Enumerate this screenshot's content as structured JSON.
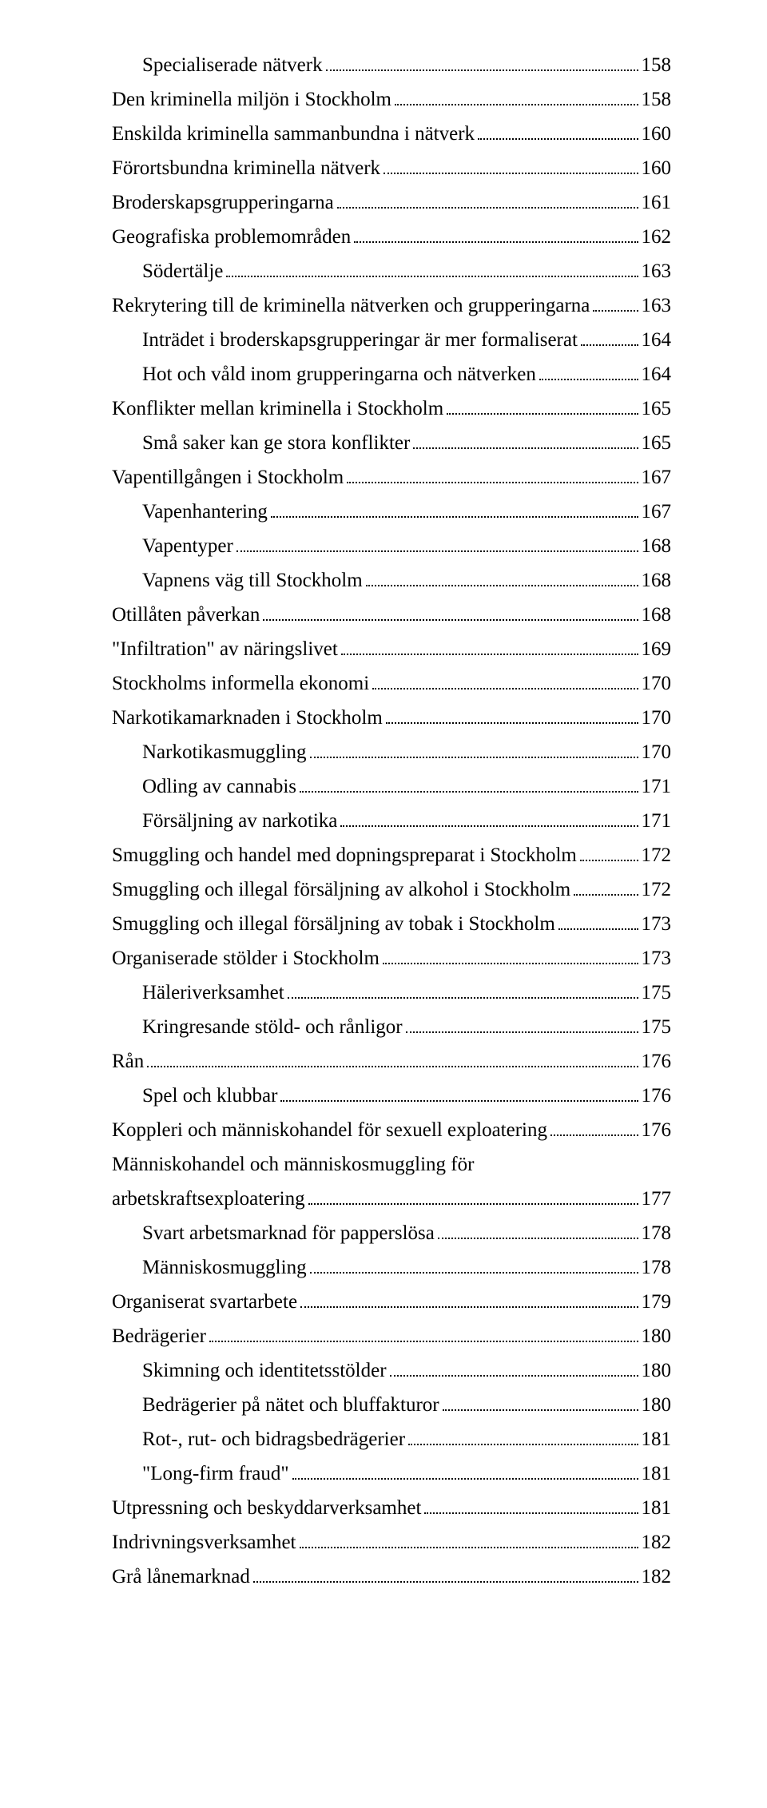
{
  "toc": [
    {
      "label": "Specialiserade nätverk",
      "page": "158",
      "indent": 1
    },
    {
      "label": "Den kriminella miljön i Stockholm",
      "page": "158",
      "indent": 0
    },
    {
      "label": "Enskilda kriminella sammanbundna i nätverk",
      "page": "160",
      "indent": 0
    },
    {
      "label": "Förortsbundna kriminella nätverk",
      "page": "160",
      "indent": 0
    },
    {
      "label": "Broderskapsgrupperingarna",
      "page": "161",
      "indent": 0
    },
    {
      "label": "Geografiska problemområden",
      "page": "162",
      "indent": 0
    },
    {
      "label": "Södertälje",
      "page": "163",
      "indent": 1
    },
    {
      "label": "Rekrytering till de kriminella nätverken och grupperingarna",
      "page": "163",
      "indent": 0
    },
    {
      "label": "Inträdet i broderskapsgrupperingar är mer formaliserat",
      "page": "164",
      "indent": 1
    },
    {
      "label": "Hot och våld inom grupperingarna och nätverken",
      "page": "164",
      "indent": 1
    },
    {
      "label": "Konflikter mellan kriminella i Stockholm",
      "page": "165",
      "indent": 0
    },
    {
      "label": "Små saker kan ge stora konflikter",
      "page": "165",
      "indent": 1
    },
    {
      "label": "Vapentillgången i Stockholm",
      "page": "167",
      "indent": 0
    },
    {
      "label": "Vapenhantering",
      "page": "167",
      "indent": 1
    },
    {
      "label": "Vapentyper",
      "page": "168",
      "indent": 1
    },
    {
      "label": "Vapnens väg till Stockholm",
      "page": "168",
      "indent": 1
    },
    {
      "label": "Otillåten påverkan",
      "page": "168",
      "indent": 0
    },
    {
      "label": "\"Infiltration\" av näringslivet",
      "page": "169",
      "indent": 0
    },
    {
      "label": "Stockholms informella ekonomi",
      "page": "170",
      "indent": 0
    },
    {
      "label": "Narkotikamarknaden i Stockholm",
      "page": "170",
      "indent": 0
    },
    {
      "label": "Narkotikasmuggling",
      "page": "170",
      "indent": 1
    },
    {
      "label": "Odling av cannabis",
      "page": "171",
      "indent": 1
    },
    {
      "label": "Försäljning av narkotika",
      "page": "171",
      "indent": 1
    },
    {
      "label": "Smuggling och handel med dopningspreparat i Stockholm",
      "page": "172",
      "indent": 0
    },
    {
      "label": "Smuggling och illegal försäljning av alkohol i Stockholm",
      "page": "172",
      "indent": 0
    },
    {
      "label": "Smuggling och illegal försäljning av tobak i Stockholm",
      "page": "173",
      "indent": 0
    },
    {
      "label": "Organiserade stölder i Stockholm",
      "page": "173",
      "indent": 0
    },
    {
      "label": "Häleriverksamhet",
      "page": "175",
      "indent": 1
    },
    {
      "label": "Kringresande stöld- och rånligor",
      "page": "175",
      "indent": 1
    },
    {
      "label": "Rån",
      "page": "176",
      "indent": 0
    },
    {
      "label": "Spel och klubbar",
      "page": "176",
      "indent": 1
    },
    {
      "label": "Koppleri och människohandel för sexuell exploatering",
      "page": "176",
      "indent": 0
    },
    {
      "label": "Människohandel och människosmuggling för arbetskraftsexploatering",
      "page": "177",
      "indent": 0,
      "wrap": true
    },
    {
      "label": "Svart arbetsmarknad för papperslösa",
      "page": "178",
      "indent": 1
    },
    {
      "label": "Människosmuggling",
      "page": "178",
      "indent": 1
    },
    {
      "label": "Organiserat svartarbete",
      "page": "179",
      "indent": 0
    },
    {
      "label": "Bedrägerier",
      "page": "180",
      "indent": 0
    },
    {
      "label": "Skimning och identitetsstölder",
      "page": "180",
      "indent": 1
    },
    {
      "label": "Bedrägerier på nätet och bluffakturor",
      "page": "180",
      "indent": 1
    },
    {
      "label": "Rot-, rut- och bidragsbedrägerier",
      "page": "181",
      "indent": 1
    },
    {
      "label": "\"Long-firm fraud\"",
      "page": "181",
      "indent": 1
    },
    {
      "label": "Utpressning och beskyddarverksamhet",
      "page": "181",
      "indent": 0
    },
    {
      "label": "Indrivningsverksamhet",
      "page": "182",
      "indent": 0
    },
    {
      "label": "Grå lånemarknad",
      "page": "182",
      "indent": 0
    }
  ]
}
